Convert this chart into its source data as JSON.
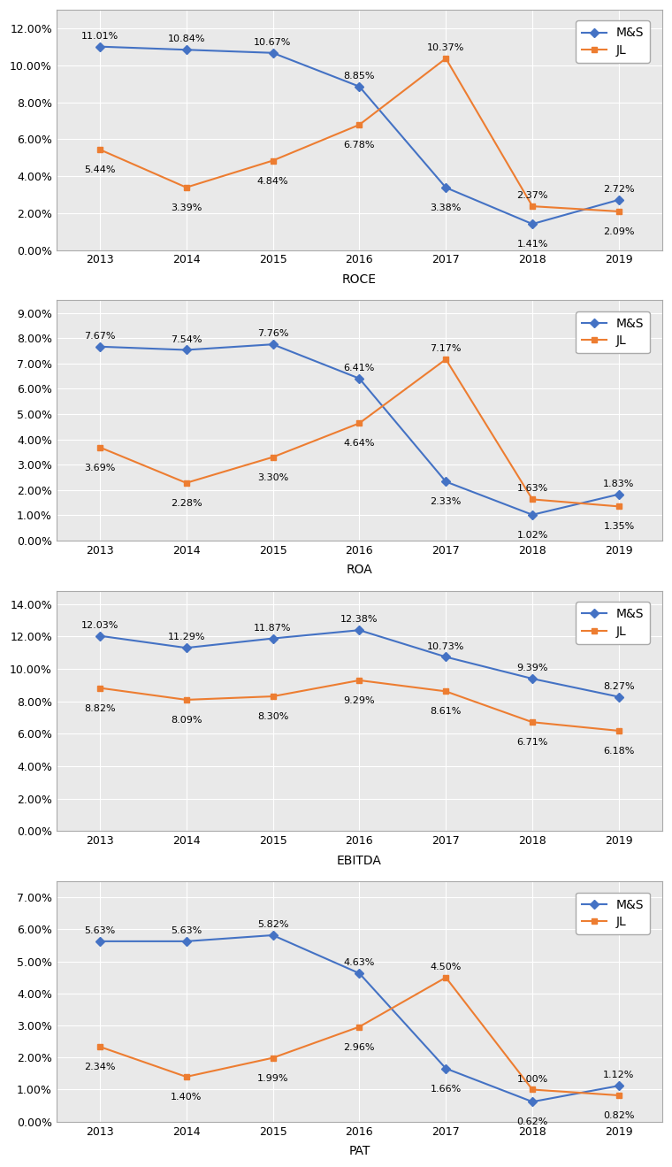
{
  "years": [
    2013,
    2014,
    2015,
    2016,
    2017,
    2018,
    2019
  ],
  "charts": [
    {
      "title": "ROCE",
      "ms_values": [
        0.1101,
        0.1084,
        0.1067,
        0.0885,
        0.0338,
        0.0141,
        0.0272
      ],
      "jl_values": [
        0.0544,
        0.0339,
        0.0484,
        0.0678,
        0.1037,
        0.0237,
        0.0209
      ],
      "ms_labels": [
        "11.01%",
        "10.84%",
        "10.67%",
        "8.85%",
        "3.38%",
        "1.41%",
        "2.72%"
      ],
      "jl_labels": [
        "5.44%",
        "3.39%",
        "4.84%",
        "6.78%",
        "10.37%",
        "2.37%",
        "2.09%"
      ],
      "ms_label_offsets": [
        5,
        5,
        5,
        5,
        -13,
        -13,
        5
      ],
      "jl_label_offsets": [
        -13,
        -13,
        -13,
        -13,
        5,
        5,
        -13
      ],
      "ymax": 0.13,
      "yticks": [
        0.0,
        0.02,
        0.04,
        0.06,
        0.08,
        0.1,
        0.12
      ],
      "ytick_labels": [
        "0.00%",
        "2.00%",
        "4.00%",
        "6.00%",
        "8.00%",
        "10.00%",
        "12.00%"
      ]
    },
    {
      "title": "ROA",
      "ms_values": [
        0.0767,
        0.0754,
        0.0776,
        0.0641,
        0.0233,
        0.0102,
        0.0183
      ],
      "jl_values": [
        0.0369,
        0.0228,
        0.033,
        0.0464,
        0.0717,
        0.0163,
        0.0135
      ],
      "ms_labels": [
        "7.67%",
        "7.54%",
        "7.76%",
        "6.41%",
        "2.33%",
        "1.02%",
        "1.83%"
      ],
      "jl_labels": [
        "3.69%",
        "2.28%",
        "3.30%",
        "4.64%",
        "7.17%",
        "1.63%",
        "1.35%"
      ],
      "ms_label_offsets": [
        5,
        5,
        5,
        5,
        -13,
        -13,
        5
      ],
      "jl_label_offsets": [
        -13,
        -13,
        -13,
        -13,
        5,
        5,
        -13
      ],
      "ymax": 0.095,
      "yticks": [
        0.0,
        0.01,
        0.02,
        0.03,
        0.04,
        0.05,
        0.06,
        0.07,
        0.08,
        0.09
      ],
      "ytick_labels": [
        "0.00%",
        "1.00%",
        "2.00%",
        "3.00%",
        "4.00%",
        "5.00%",
        "6.00%",
        "7.00%",
        "8.00%",
        "9.00%"
      ]
    },
    {
      "title": "EBITDA",
      "ms_values": [
        0.1203,
        0.1129,
        0.1187,
        0.1238,
        0.1073,
        0.0939,
        0.0827
      ],
      "jl_values": [
        0.0882,
        0.0809,
        0.083,
        0.0929,
        0.0861,
        0.0671,
        0.0618
      ],
      "ms_labels": [
        "12.03%",
        "11.29%",
        "11.87%",
        "12.38%",
        "10.73%",
        "9.39%",
        "8.27%"
      ],
      "jl_labels": [
        "8.82%",
        "8.09%",
        "8.30%",
        "9.29%",
        "8.61%",
        "6.71%",
        "6.18%"
      ],
      "ms_label_offsets": [
        5,
        5,
        5,
        5,
        5,
        5,
        5
      ],
      "jl_label_offsets": [
        -13,
        -13,
        -13,
        -13,
        -13,
        -13,
        -13
      ],
      "ymax": 0.148,
      "yticks": [
        0.0,
        0.02,
        0.04,
        0.06,
        0.08,
        0.1,
        0.12,
        0.14
      ],
      "ytick_labels": [
        "0.00%",
        "2.00%",
        "4.00%",
        "6.00%",
        "8.00%",
        "10.00%",
        "12.00%",
        "14.00%"
      ]
    },
    {
      "title": "PAT",
      "ms_values": [
        0.0563,
        0.0563,
        0.0582,
        0.0463,
        0.0166,
        0.0062,
        0.0112
      ],
      "jl_values": [
        0.0234,
        0.014,
        0.0199,
        0.0296,
        0.045,
        0.01,
        0.0082
      ],
      "ms_labels": [
        "5.63%",
        "5.63%",
        "5.82%",
        "4.63%",
        "1.66%",
        "0.62%",
        "1.12%"
      ],
      "jl_labels": [
        "2.34%",
        "1.40%",
        "1.99%",
        "2.96%",
        "4.50%",
        "1.00%",
        "0.82%"
      ],
      "ms_label_offsets": [
        5,
        5,
        5,
        5,
        -13,
        -13,
        5
      ],
      "jl_label_offsets": [
        -13,
        -13,
        -13,
        -13,
        5,
        5,
        -13
      ],
      "ymax": 0.075,
      "yticks": [
        0.0,
        0.01,
        0.02,
        0.03,
        0.04,
        0.05,
        0.06,
        0.07
      ],
      "ytick_labels": [
        "0.00%",
        "1.00%",
        "2.00%",
        "3.00%",
        "4.00%",
        "5.00%",
        "6.00%",
        "7.00%"
      ]
    }
  ],
  "ms_color": "#4472C4",
  "jl_color": "#ED7D31",
  "ms_marker": "D",
  "jl_marker": "s",
  "plot_bg_color": "#E9E9E9",
  "fig_bg_color": "#FFFFFF",
  "grid_color": "#FFFFFF",
  "label_fontsize": 8,
  "axis_label_fontsize": 10,
  "legend_fontsize": 10,
  "tick_fontsize": 9,
  "border_color": "#AAAAAA"
}
